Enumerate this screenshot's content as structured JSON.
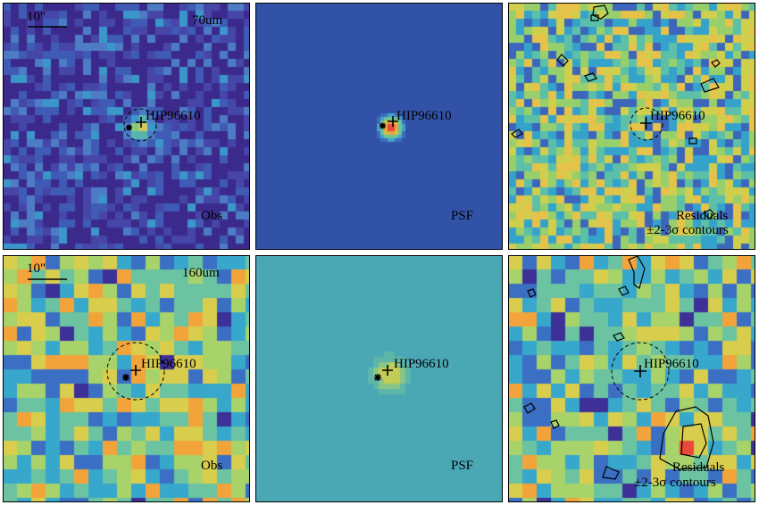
{
  "figure": {
    "panels": [
      {
        "id": "p70-obs",
        "type": "observed",
        "band_label": "70um",
        "scale_label": "10\"",
        "target": "HIP96610",
        "tag": "Obs",
        "note": "",
        "style": "noise-dark",
        "colors": [
          "#3b2a8c",
          "#4646a8",
          "#3f5bb5",
          "#4d7cc4",
          "#3b97c9",
          "#57b5b0",
          "#8cc77e",
          "#d5c85a"
        ]
      },
      {
        "id": "p70-psf",
        "type": "psf",
        "band_label": "",
        "scale_label": "",
        "target": "HIP96610",
        "tag": "PSF",
        "note": "",
        "style": "psf-narrow",
        "colors": [
          "#3152a6",
          "#3b6ec0",
          "#42a3c6",
          "#6cc49a",
          "#c9c64a",
          "#f2a33a",
          "#e8493a"
        ]
      },
      {
        "id": "p70-res",
        "type": "residual",
        "band_label": "",
        "scale_label": "",
        "target": "HIP96610",
        "tag": "Residuals",
        "note": "±2-3σ contours",
        "style": "noise-bright",
        "colors": [
          "#3a2b88",
          "#3c66bb",
          "#35a2cb",
          "#5cbfa8",
          "#96cf6b",
          "#d0cf4d",
          "#e5c24a"
        ]
      },
      {
        "id": "p160-obs",
        "type": "observed",
        "band_label": "160um",
        "scale_label": "10\"",
        "target": "HIP96610",
        "tag": "Obs",
        "note": "",
        "style": "coarse",
        "colors": [
          "#3d3097",
          "#3a6fc4",
          "#37a7cc",
          "#6cc3a1",
          "#a7d36a",
          "#d8cd4d",
          "#f2a43a",
          "#e8493a"
        ]
      },
      {
        "id": "p160-psf",
        "type": "psf",
        "band_label": "",
        "scale_label": "",
        "target": "HIP96610",
        "tag": "PSF",
        "note": "",
        "style": "psf-wide",
        "colors": [
          "#4aa8b5",
          "#5db6a8",
          "#8ac585",
          "#c2cd55"
        ]
      },
      {
        "id": "p160-res",
        "type": "residual",
        "band_label": "",
        "scale_label": "",
        "target": "HIP96610",
        "tag": "Residuals",
        "note": "±2-3σ contours",
        "style": "coarse-res",
        "colors": [
          "#3d3097",
          "#3a6fc4",
          "#37a7cc",
          "#6cc3a1",
          "#a7d36a",
          "#d8cd4d",
          "#f2a43a",
          "#e8493a"
        ]
      }
    ]
  }
}
